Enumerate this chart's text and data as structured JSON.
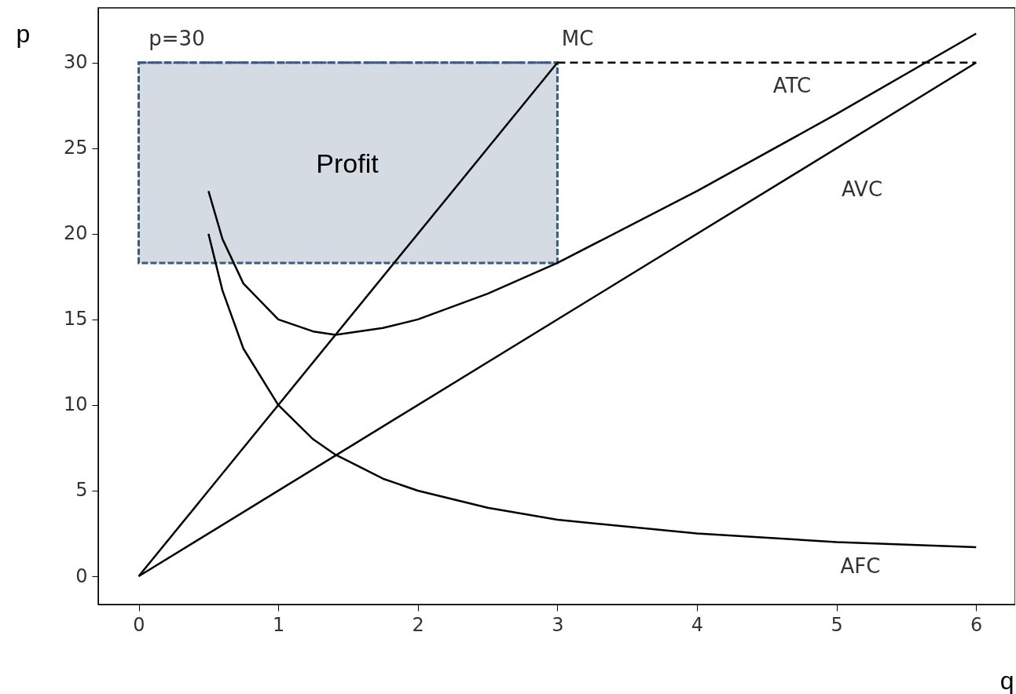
{
  "chart_data": {
    "type": "line",
    "xlabel": "q",
    "ylabel": "p",
    "xlim": [
      -0.29,
      6.28
    ],
    "ylim": [
      -1.65,
      33.2
    ],
    "xticks": [
      0,
      1,
      2,
      3,
      4,
      5,
      6
    ],
    "yticks": [
      0,
      5,
      10,
      15,
      20,
      25,
      30
    ],
    "grid": false,
    "series": [
      {
        "color": "#3b5a80",
        "line_style": "dashed",
        "x": [
          0,
          3
        ],
        "values": [
          30,
          30
        ],
        "lower": [
          18.3,
          18.3
        ],
        "upper": [
          30,
          30
        ]
      },
      {
        "color": "#000000",
        "x": [
          0,
          3
        ],
        "values": [
          0,
          30
        ]
      },
      {
        "color": "#000000",
        "x": [
          0,
          6
        ],
        "values": [
          0,
          30
        ]
      },
      {
        "color": "#000000",
        "x": [
          0.5,
          0.6,
          0.75,
          1,
          1.25,
          1.41,
          1.75,
          2,
          2.5,
          3,
          4,
          5,
          6
        ],
        "values": [
          20,
          16.7,
          13.3,
          10,
          8,
          7.1,
          5.7,
          5,
          4,
          3.3,
          2.5,
          2,
          1.7
        ]
      },
      {
        "color": "#000000",
        "x": [
          0.5,
          0.6,
          0.75,
          1,
          1.25,
          1.41,
          1.75,
          2,
          2.5,
          3,
          4,
          5,
          6
        ],
        "values": [
          22.5,
          19.7,
          17.1,
          15,
          14.3,
          14.1,
          14.5,
          15,
          16.5,
          18.3,
          22.5,
          27,
          31.7
        ]
      },
      {
        "color": "#000000",
        "line_style": "dashed",
        "x": [
          3,
          6
        ],
        "values": [
          30,
          30
        ]
      }
    ],
    "annotations": [
      "p=30",
      "MC",
      "ATC",
      "AVC",
      "AFC",
      "Profit"
    ]
  }
}
